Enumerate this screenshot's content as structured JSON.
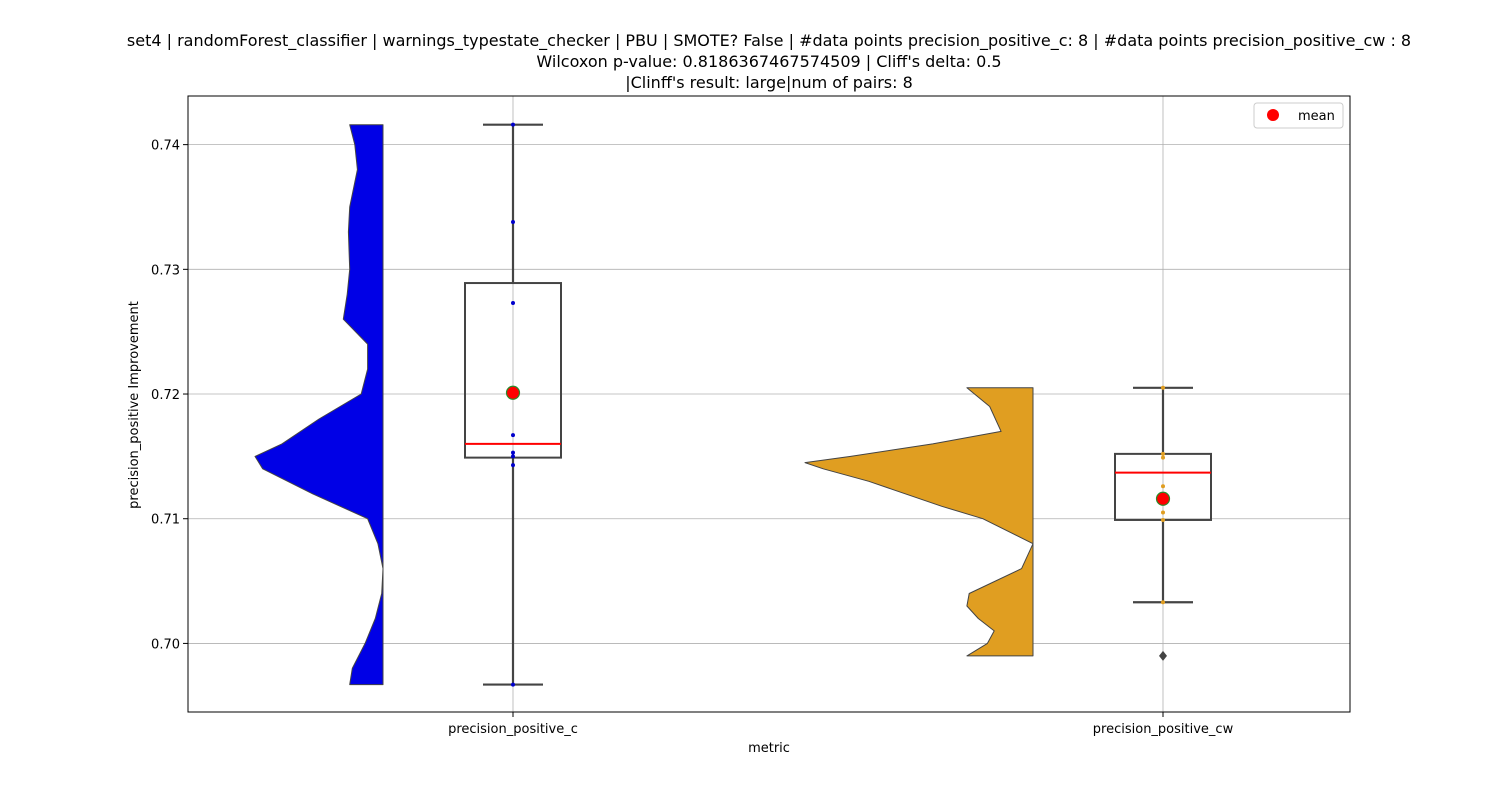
{
  "chart_data": {
    "type": "violin+box",
    "title_lines": [
      "set4 | randomForest_classifier | warnings_typestate_checker | PBU | SMOTE? False | #data points precision_positive_c: 8 | #data points precision_positive_cw : 8",
      "Wilcoxon p-value: 0.8186367467574509 | Cliff's delta: 0.5",
      "|Clinff's result: large|num of pairs: 8"
    ],
    "xlabel": "metric",
    "ylabel": "precision_positive Improvement",
    "ylim": [
      0.6945,
      0.7439
    ],
    "yticks": [
      0.7,
      0.71,
      0.72,
      0.73,
      0.74
    ],
    "ytick_labels": [
      "0.70",
      "0.71",
      "0.72",
      "0.73",
      "0.74"
    ],
    "grid": true,
    "legend": {
      "position": "top-right",
      "entries": [
        {
          "label": "mean",
          "color": "#ff0000"
        }
      ]
    },
    "categories": [
      "precision_positive_c",
      "precision_positive_cw"
    ],
    "series": [
      {
        "category": "precision_positive_c",
        "violin_color": "#0000e6",
        "point_color": "#0000cc",
        "points": [
          0.7416,
          0.7338,
          0.7273,
          0.7167,
          0.7153,
          0.715,
          0.7143,
          0.6967
        ],
        "box": {
          "whisker_low": 0.6967,
          "q1": 0.7149,
          "median": 0.716,
          "q3": 0.7289,
          "whisker_high": 0.7416
        },
        "mean": 0.7201,
        "outliers": [],
        "density": [
          [
            0.7416,
            0.26
          ],
          [
            0.74,
            0.22
          ],
          [
            0.738,
            0.2
          ],
          [
            0.735,
            0.26
          ],
          [
            0.733,
            0.27
          ],
          [
            0.73,
            0.26
          ],
          [
            0.728,
            0.28
          ],
          [
            0.726,
            0.31
          ],
          [
            0.724,
            0.12
          ],
          [
            0.722,
            0.12
          ],
          [
            0.72,
            0.17
          ],
          [
            0.718,
            0.5
          ],
          [
            0.716,
            0.79
          ],
          [
            0.715,
            1.0
          ],
          [
            0.714,
            0.94
          ],
          [
            0.712,
            0.55
          ],
          [
            0.71,
            0.12
          ],
          [
            0.708,
            0.04
          ],
          [
            0.706,
            0.0
          ],
          [
            0.704,
            0.01
          ],
          [
            0.702,
            0.06
          ],
          [
            0.7,
            0.14
          ],
          [
            0.698,
            0.24
          ],
          [
            0.6967,
            0.26
          ]
        ]
      },
      {
        "category": "precision_positive_cw",
        "violin_color": "#e09e21",
        "point_color": "#e09e21",
        "points": [
          0.7205,
          0.7152,
          0.7149,
          0.7126,
          0.7105,
          0.7099,
          0.7033,
          0.699
        ],
        "box": {
          "whisker_low": 0.7033,
          "q1": 0.7099,
          "median": 0.7137,
          "q3": 0.7152,
          "whisker_high": 0.7205
        },
        "mean": 0.7116,
        "outliers": [
          0.699
        ],
        "density": [
          [
            0.7205,
            0.29
          ],
          [
            0.719,
            0.19
          ],
          [
            0.717,
            0.14
          ],
          [
            0.716,
            0.44
          ],
          [
            0.715,
            0.8
          ],
          [
            0.7145,
            1.0
          ],
          [
            0.714,
            0.92
          ],
          [
            0.713,
            0.72
          ],
          [
            0.711,
            0.4
          ],
          [
            0.71,
            0.22
          ],
          [
            0.708,
            0.0
          ],
          [
            0.706,
            0.05
          ],
          [
            0.704,
            0.28
          ],
          [
            0.703,
            0.29
          ],
          [
            0.702,
            0.24
          ],
          [
            0.701,
            0.17
          ],
          [
            0.7,
            0.2
          ],
          [
            0.699,
            0.29
          ]
        ]
      }
    ]
  }
}
